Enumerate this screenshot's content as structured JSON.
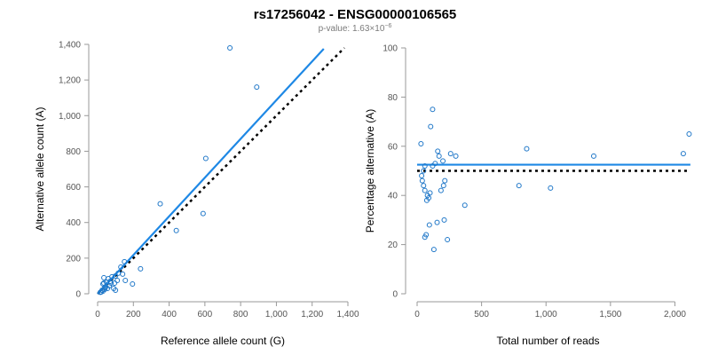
{
  "header": {
    "title": "rs17256042 - ENSG00000106565",
    "subtitle_prefix": "p-value: 1.63×10",
    "subtitle_exponent": "−6"
  },
  "colors": {
    "points": "#1f77c8",
    "fit_line": "#1e88e5",
    "reference_line": "#000000"
  },
  "chart_data": [
    {
      "id": "left",
      "type": "scatter",
      "title": "",
      "xlabel": "Reference allele count (G)",
      "ylabel": "Alternative allele count (A)",
      "xlim": [
        0,
        1400
      ],
      "ylim": [
        0,
        1400
      ],
      "xticks": [
        0,
        200,
        400,
        600,
        800,
        1000,
        1200,
        1400
      ],
      "xtick_labels": [
        "0",
        "200",
        "400",
        "600",
        "800",
        "1,000",
        "1,200",
        "1,400"
      ],
      "yticks": [
        0,
        200,
        400,
        600,
        800,
        1000,
        1200,
        1400
      ],
      "ytick_labels": [
        "0",
        "200",
        "400",
        "600",
        "800",
        "1,000",
        "1,200",
        "1,400"
      ],
      "points": [
        {
          "x": 740,
          "y": 1380
        },
        {
          "x": 890,
          "y": 1160
        },
        {
          "x": 605,
          "y": 760
        },
        {
          "x": 350,
          "y": 505
        },
        {
          "x": 590,
          "y": 450
        },
        {
          "x": 440,
          "y": 355
        },
        {
          "x": 240,
          "y": 140
        },
        {
          "x": 195,
          "y": 55
        },
        {
          "x": 150,
          "y": 180
        },
        {
          "x": 140,
          "y": 110
        },
        {
          "x": 130,
          "y": 150
        },
        {
          "x": 155,
          "y": 75
        },
        {
          "x": 115,
          "y": 115
        },
        {
          "x": 100,
          "y": 100
        },
        {
          "x": 110,
          "y": 75
        },
        {
          "x": 95,
          "y": 60
        },
        {
          "x": 90,
          "y": 30
        },
        {
          "x": 100,
          "y": 20
        },
        {
          "x": 80,
          "y": 95
        },
        {
          "x": 70,
          "y": 70
        },
        {
          "x": 60,
          "y": 85
        },
        {
          "x": 50,
          "y": 65
        },
        {
          "x": 45,
          "y": 40
        },
        {
          "x": 40,
          "y": 35
        },
        {
          "x": 35,
          "y": 90
        },
        {
          "x": 30,
          "y": 55
        },
        {
          "x": 25,
          "y": 20
        },
        {
          "x": 30,
          "y": 15
        },
        {
          "x": 40,
          "y": 25
        },
        {
          "x": 55,
          "y": 30
        },
        {
          "x": 65,
          "y": 45
        },
        {
          "x": 20,
          "y": 10
        },
        {
          "x": 15,
          "y": 8
        },
        {
          "x": 75,
          "y": 60
        },
        {
          "x": 35,
          "y": 60
        }
      ],
      "fit_line": {
        "x": [
          0,
          1265
        ],
        "y": [
          0,
          1375
        ]
      },
      "reference_line": {
        "x": [
          0,
          1380
        ],
        "y": [
          0,
          1380
        ]
      }
    },
    {
      "id": "right",
      "type": "scatter",
      "title": "",
      "xlabel": "Total number of reads",
      "ylabel": "Percentage alternative (A)",
      "xlim": [
        0,
        2100
      ],
      "ylim": [
        0,
        100
      ],
      "xticks": [
        0,
        500,
        1000,
        1500,
        2000
      ],
      "xtick_labels": [
        "0",
        "500",
        "1,000",
        "1,500",
        "2,000"
      ],
      "yticks": [
        0,
        20,
        40,
        60,
        80,
        100
      ],
      "ytick_labels": [
        "0",
        "20",
        "40",
        "60",
        "80",
        "100"
      ],
      "points": [
        {
          "x": 120,
          "y": 75
        },
        {
          "x": 105,
          "y": 68
        },
        {
          "x": 30,
          "y": 61
        },
        {
          "x": 160,
          "y": 58
        },
        {
          "x": 170,
          "y": 56
        },
        {
          "x": 200,
          "y": 54
        },
        {
          "x": 260,
          "y": 57
        },
        {
          "x": 300,
          "y": 56
        },
        {
          "x": 140,
          "y": 53
        },
        {
          "x": 120,
          "y": 52
        },
        {
          "x": 60,
          "y": 52
        },
        {
          "x": 50,
          "y": 50
        },
        {
          "x": 35,
          "y": 48
        },
        {
          "x": 40,
          "y": 46
        },
        {
          "x": 50,
          "y": 44
        },
        {
          "x": 60,
          "y": 42
        },
        {
          "x": 80,
          "y": 40
        },
        {
          "x": 100,
          "y": 41
        },
        {
          "x": 75,
          "y": 38
        },
        {
          "x": 90,
          "y": 39
        },
        {
          "x": 215,
          "y": 46
        },
        {
          "x": 205,
          "y": 44
        },
        {
          "x": 185,
          "y": 42
        },
        {
          "x": 370,
          "y": 36
        },
        {
          "x": 210,
          "y": 30
        },
        {
          "x": 155,
          "y": 29
        },
        {
          "x": 95,
          "y": 28
        },
        {
          "x": 70,
          "y": 24
        },
        {
          "x": 60,
          "y": 23
        },
        {
          "x": 235,
          "y": 22
        },
        {
          "x": 130,
          "y": 18
        },
        {
          "x": 790,
          "y": 44
        },
        {
          "x": 1035,
          "y": 43
        },
        {
          "x": 850,
          "y": 59
        },
        {
          "x": 1370,
          "y": 56
        },
        {
          "x": 2065,
          "y": 57
        },
        {
          "x": 2110,
          "y": 65
        }
      ],
      "fit_line": {
        "x": [
          0,
          2120
        ],
        "y": [
          52.5,
          52.5
        ]
      },
      "reference_line": {
        "x": [
          0,
          2120
        ],
        "y": [
          50,
          50
        ]
      }
    }
  ]
}
